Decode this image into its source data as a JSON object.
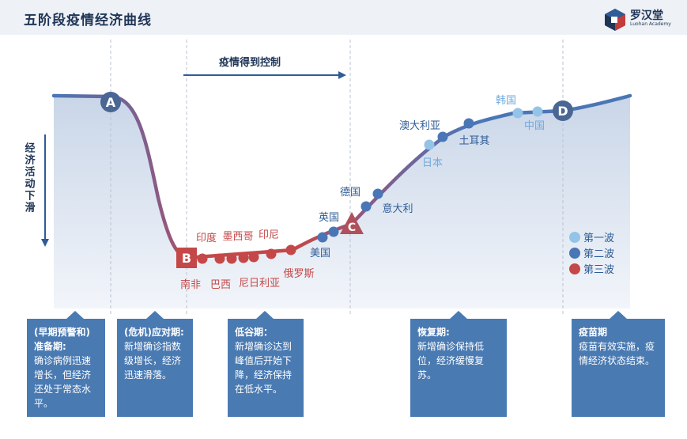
{
  "title": "五阶段疫情经济曲线",
  "brand": {
    "name": "罗汉堂",
    "subtitle": "Luohan Academy"
  },
  "top_arrow_label": "疫情得到控制",
  "side_arrow_label": "经济活动下滑",
  "points": {
    "A": "A",
    "B": "B",
    "C": "C",
    "D": "D"
  },
  "countries": {
    "south_africa": "南非",
    "india": "印度",
    "brazil": "巴西",
    "mexico": "墨西哥",
    "nigeria": "尼日利亚",
    "indonesia": "印尼",
    "russia": "俄罗斯",
    "usa": "美国",
    "uk": "英国",
    "germany": "德国",
    "italy": "意大利",
    "japan": "日本",
    "australia": "澳大利亚",
    "turkey": "土耳其",
    "korea": "韩国",
    "china": "中国"
  },
  "legend": [
    {
      "label": "第一波",
      "color": "#94c3e8"
    },
    {
      "label": "第二波",
      "color": "#4a76b6"
    },
    {
      "label": "第三波",
      "color": "#c54848"
    }
  ],
  "stages": [
    {
      "title": "(早期预警和)准备期:",
      "desc": "确诊病例迅速增长，但经济还处于常态水平。"
    },
    {
      "title": "(危机)应对期:",
      "desc": "新增确诊指数级增长，经济迅速滑落。"
    },
    {
      "title": "低谷期：",
      "desc": "新增确诊达到峰值后开始下降，经济保持在低水平。"
    },
    {
      "title": "恢复期:",
      "desc": "新增确诊保持低位，经济缓慢复苏。"
    },
    {
      "title": "疫苗期",
      "desc": "疫苗有效实施，疫情经济状态结束。"
    }
  ],
  "colors": {
    "wave1": "#94c3e8",
    "wave2": "#4a76b6",
    "wave3": "#c54848",
    "card": "#4a7ab2",
    "title": "#1f3556"
  }
}
